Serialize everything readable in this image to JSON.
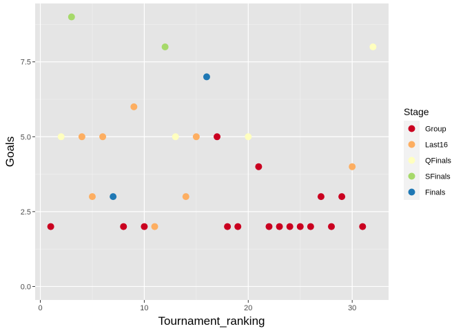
{
  "chart_data": {
    "type": "scatter",
    "xlabel": "Tournament_ranking",
    "ylabel": "Goals",
    "xlim": [
      -0.5,
      33.5
    ],
    "ylim": [
      -0.45,
      9.45
    ],
    "x_ticks": [
      0,
      10,
      20,
      30
    ],
    "x_tick_labels": [
      "0",
      "10",
      "20",
      "30"
    ],
    "y_ticks": [
      0,
      2.5,
      5,
      7.5
    ],
    "y_tick_labels": [
      "0.0",
      "2.5",
      "5.0",
      "7.5"
    ],
    "grid": true,
    "background": "#e5e5e5",
    "legend": {
      "title": "Stage",
      "placement": "right",
      "entries": [
        {
          "label": "Group",
          "color": "#ca0020"
        },
        {
          "label": "Last16",
          "color": "#fdae61"
        },
        {
          "label": "QFinals",
          "color": "#ffffbf"
        },
        {
          "label": "SFinals",
          "color": "#a6d96a"
        },
        {
          "label": "Finals",
          "color": "#1f78b4"
        }
      ]
    },
    "points": [
      {
        "x": 1,
        "y": 2,
        "stage": "Group"
      },
      {
        "x": 2,
        "y": 5,
        "stage": "QFinals"
      },
      {
        "x": 3,
        "y": 9,
        "stage": "SFinals"
      },
      {
        "x": 4,
        "y": 5,
        "stage": "Last16"
      },
      {
        "x": 5,
        "y": 3,
        "stage": "Last16"
      },
      {
        "x": 6,
        "y": 5,
        "stage": "Last16"
      },
      {
        "x": 7,
        "y": 3,
        "stage": "Finals"
      },
      {
        "x": 8,
        "y": 2,
        "stage": "Group"
      },
      {
        "x": 9,
        "y": 6,
        "stage": "Last16"
      },
      {
        "x": 10,
        "y": 2,
        "stage": "Group"
      },
      {
        "x": 11,
        "y": 2,
        "stage": "Last16"
      },
      {
        "x": 12,
        "y": 8,
        "stage": "SFinals"
      },
      {
        "x": 13,
        "y": 5,
        "stage": "QFinals"
      },
      {
        "x": 14,
        "y": 3,
        "stage": "Last16"
      },
      {
        "x": 15,
        "y": 5,
        "stage": "Last16"
      },
      {
        "x": 16,
        "y": 7,
        "stage": "Finals"
      },
      {
        "x": 17,
        "y": 5,
        "stage": "Group"
      },
      {
        "x": 18,
        "y": 2,
        "stage": "Group"
      },
      {
        "x": 19,
        "y": 2,
        "stage": "Group"
      },
      {
        "x": 20,
        "y": 5,
        "stage": "QFinals"
      },
      {
        "x": 21,
        "y": 4,
        "stage": "Group"
      },
      {
        "x": 22,
        "y": 2,
        "stage": "Group"
      },
      {
        "x": 23,
        "y": 2,
        "stage": "Group"
      },
      {
        "x": 24,
        "y": 2,
        "stage": "Group"
      },
      {
        "x": 25,
        "y": 2,
        "stage": "Group"
      },
      {
        "x": 26,
        "y": 2,
        "stage": "Group"
      },
      {
        "x": 27,
        "y": 3,
        "stage": "Group"
      },
      {
        "x": 28,
        "y": 2,
        "stage": "Group"
      },
      {
        "x": 29,
        "y": 3,
        "stage": "Group"
      },
      {
        "x": 30,
        "y": 4,
        "stage": "Last16"
      },
      {
        "x": 31,
        "y": 2,
        "stage": "Group"
      },
      {
        "x": 32,
        "y": 8,
        "stage": "QFinals"
      }
    ]
  }
}
